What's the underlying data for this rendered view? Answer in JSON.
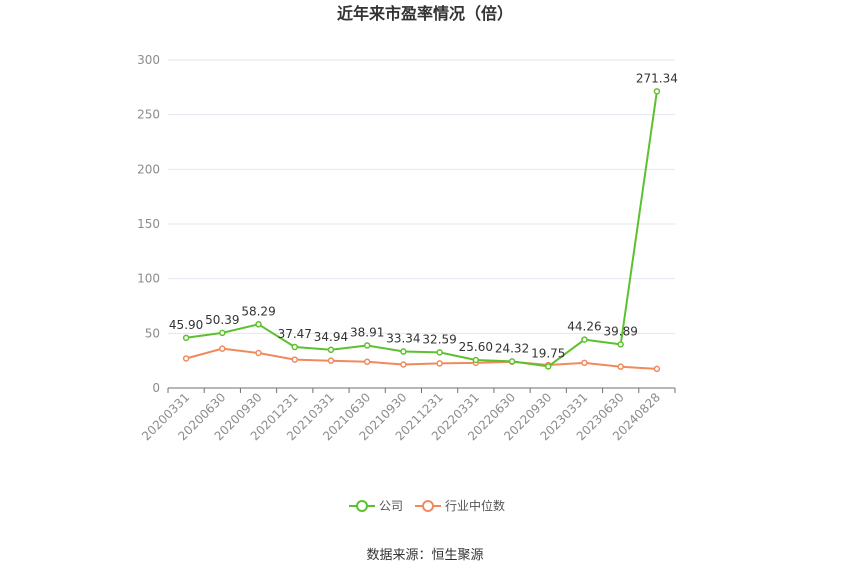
{
  "chart_data": {
    "type": "line",
    "title": "近年来市盈率情况（倍）",
    "categories": [
      "20200331",
      "20200630",
      "20200930",
      "20201231",
      "20210331",
      "20210630",
      "20210930",
      "20211231",
      "20220331",
      "20220630",
      "20220930",
      "20230331",
      "20230630",
      "20240828"
    ],
    "series": [
      {
        "name": "公司",
        "color": "#5dc12f",
        "values": [
          45.9,
          50.39,
          58.29,
          37.47,
          34.94,
          38.91,
          33.34,
          32.59,
          25.6,
          24.32,
          19.75,
          44.26,
          39.89,
          271.34
        ],
        "labels": [
          "45.90",
          "50.39",
          "58.29",
          "37.47",
          "34.94",
          "38.91",
          "33.34",
          "32.59",
          "25.60",
          "24.32",
          "19.75",
          "44.26",
          "39.89",
          "271.34"
        ]
      },
      {
        "name": "行业中位数",
        "color": "#f08a5d",
        "values": [
          27,
          36,
          32,
          26,
          25,
          24,
          21.5,
          22.5,
          23,
          24,
          21,
          23,
          19.5,
          17.5
        ]
      }
    ],
    "ylim": [
      0,
      300
    ],
    "yticks": [
      0,
      50,
      100,
      150,
      200,
      250,
      300
    ],
    "grid": true,
    "legend_position": "bottom-center"
  },
  "source": "数据来源：恒生聚源"
}
